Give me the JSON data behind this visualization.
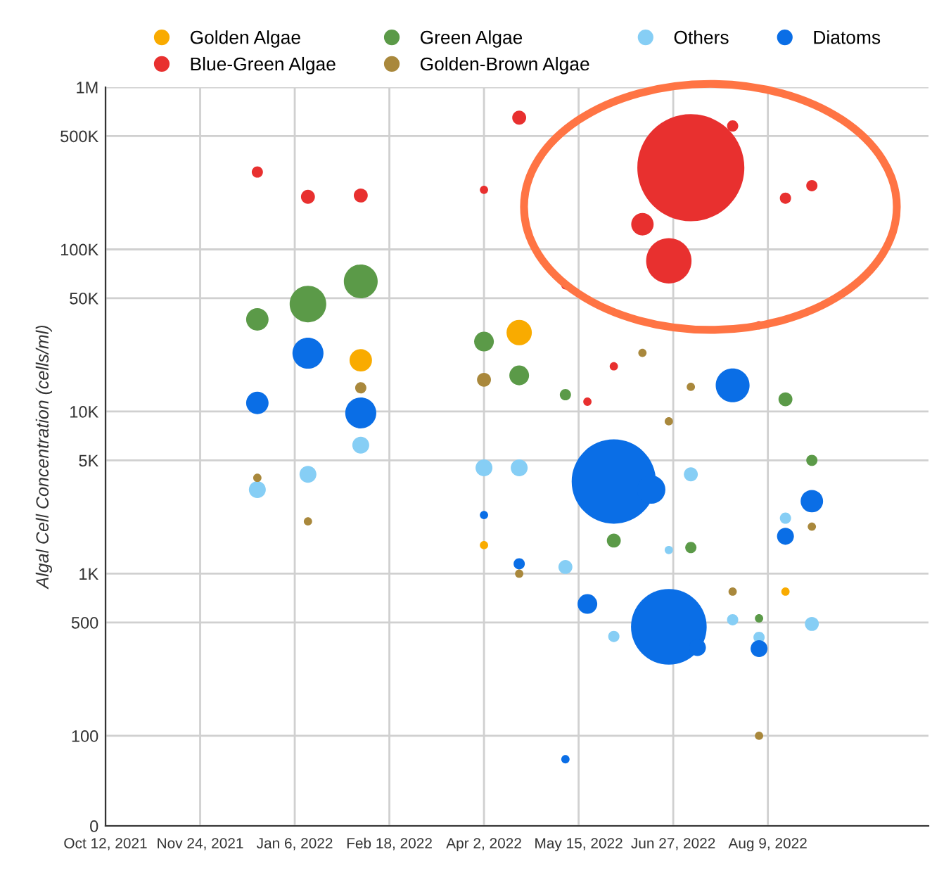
{
  "chart_data": {
    "type": "bubble",
    "ylabel": "Algal Cell Concentration (cells/ml)",
    "log": "y",
    "grid": true,
    "legend": "top",
    "marker": "circle",
    "xlim": [
      "2021-10-12",
      "2022-10-21"
    ],
    "xticks": [
      {
        "value": "2021-10-12",
        "label": "Oct 12, 2021"
      },
      {
        "value": "2021-11-24",
        "label": "Nov 24, 2021"
      },
      {
        "value": "2022-01-06",
        "label": "Jan 6, 2022"
      },
      {
        "value": "2022-02-18",
        "label": "Feb 18, 2022"
      },
      {
        "value": "2022-04-02",
        "label": "Apr 2, 2022"
      },
      {
        "value": "2022-05-15",
        "label": "May 15, 2022"
      },
      {
        "value": "2022-06-27",
        "label": "Jun 27, 2022"
      },
      {
        "value": "2022-08-09",
        "label": "Aug 9, 2022"
      }
    ],
    "ylim": [
      0,
      1000000
    ],
    "yticks": [
      0,
      100,
      500,
      {
        "value": 1000,
        "label": "1K"
      },
      {
        "value": 5000,
        "label": "5K"
      },
      {
        "value": 10000,
        "label": "10K"
      },
      {
        "value": 50000,
        "label": "50K"
      },
      {
        "value": 100000,
        "label": "100K"
      },
      {
        "value": 500000,
        "label": "500K"
      },
      {
        "value": 1000000,
        "label": "1M"
      }
    ],
    "series": [
      {
        "name": "Golden Algae",
        "color": "#f9ab00",
        "x": [
          "2022-02-05",
          "2022-04-18",
          "2022-04-02",
          "2022-08-17"
        ],
        "values": [
          20700,
          30700,
          1500,
          775
        ],
        "sizes": [
          0.044,
          0.056,
          0.006,
          0.006
        ]
      },
      {
        "name": "Green Algae",
        "color": "#5b9a48",
        "x": [
          "2021-12-20",
          "2022-01-12",
          "2022-02-05",
          "2022-04-02",
          "2022-04-18",
          "2022-05-09",
          "2022-08-17",
          "2022-08-29",
          "2022-05-31",
          "2022-07-05",
          "2022-08-05"
        ],
        "values": [
          37000,
          46000,
          63500,
          27000,
          16700,
          12700,
          11900,
          5000,
          1600,
          1450,
          530
        ],
        "sizes": [
          0.044,
          0.117,
          0.1,
          0.034,
          0.034,
          0.011,
          0.017,
          0.011,
          0.017,
          0.011,
          0.006
        ]
      },
      {
        "name": "Others",
        "color": "#86cef5",
        "x": [
          "2021-12-20",
          "2022-01-12",
          "2022-02-05",
          "2022-04-02",
          "2022-04-18",
          "2022-07-05",
          "2022-08-17",
          "2022-06-25",
          "2022-05-09",
          "2022-05-31",
          "2022-07-24",
          "2022-08-05",
          "2022-08-29"
        ],
        "values": [
          3300,
          4100,
          6200,
          4500,
          4500,
          4100,
          2200,
          1400,
          1100,
          410,
          520,
          405,
          490
        ],
        "sizes": [
          0.025,
          0.025,
          0.025,
          0.025,
          0.025,
          0.017,
          0.011,
          0.006,
          0.017,
          0.011,
          0.011,
          0.011,
          0.017
        ]
      },
      {
        "name": "Diatoms",
        "color": "#0a6ee6",
        "x": [
          "2021-12-20",
          "2022-01-12",
          "2022-02-05",
          "2022-07-24",
          "2022-05-31",
          "2022-06-17",
          "2022-08-29",
          "2022-08-17",
          "2022-04-02",
          "2022-04-18",
          "2022-05-19",
          "2022-06-25",
          "2022-07-08",
          "2022-08-05",
          "2022-05-09"
        ],
        "values": [
          11300,
          22900,
          9800,
          14500,
          3700,
          3300,
          2800,
          1700,
          2300,
          1150,
          650,
          470,
          350,
          345,
          74
        ],
        "sizes": [
          0.044,
          0.084,
          0.084,
          0.1,
          0.62,
          0.07,
          0.044,
          0.025,
          0.006,
          0.011,
          0.034,
          0.5,
          0.025,
          0.025,
          0.006
        ]
      },
      {
        "name": "Blue-Green Algae",
        "color": "#e8302f",
        "x": [
          "2021-12-20",
          "2022-01-12",
          "2022-02-05",
          "2022-04-18",
          "2022-04-02",
          "2022-07-05",
          "2022-07-24",
          "2022-08-29",
          "2022-08-17",
          "2022-06-13",
          "2022-06-25",
          "2022-05-09",
          "2022-08-05",
          "2022-05-31",
          "2022-05-19"
        ],
        "values": [
          300000,
          211000,
          215000,
          649000,
          233000,
          319000,
          577000,
          247000,
          207000,
          143000,
          85000,
          60000,
          34000,
          19000,
          11500
        ],
        "sizes": [
          0.011,
          0.017,
          0.017,
          0.017,
          0.006,
          1,
          0.011,
          0.011,
          0.011,
          0.044,
          0.18,
          0.006,
          0.006,
          0.006,
          0.006
        ]
      },
      {
        "name": "Golden-Brown Algae",
        "color": "#a9883c",
        "x": [
          "2021-12-20",
          "2022-01-12",
          "2022-02-05",
          "2022-06-13",
          "2022-04-02",
          "2022-07-05",
          "2022-06-25",
          "2022-08-29",
          "2022-04-18",
          "2022-07-24",
          "2022-08-05"
        ],
        "values": [
          3900,
          2100,
          14000,
          23000,
          15700,
          14200,
          8700,
          1950,
          1000,
          775,
          100
        ],
        "sizes": [
          0.006,
          0.006,
          0.011,
          0.006,
          0.017,
          0.006,
          0.006,
          0.006,
          0.006,
          0.006,
          0.006
        ]
      }
    ]
  }
}
